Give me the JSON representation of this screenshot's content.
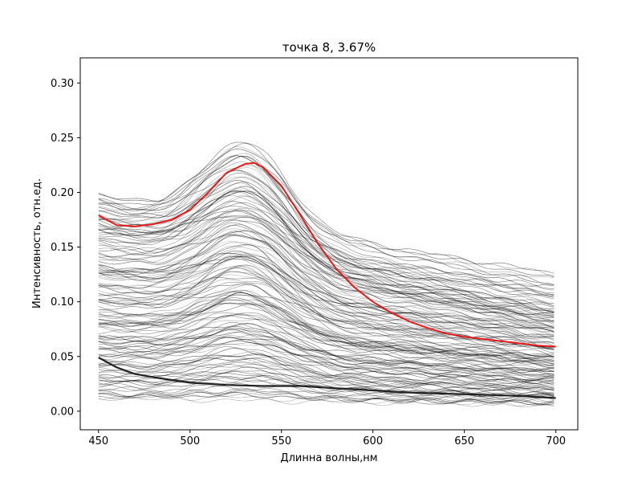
{
  "chart_data": {
    "type": "line",
    "title": "точка 8, 3.67%",
    "xlabel": "Длинна волны,нм",
    "ylabel": "Интенсивность, отн.ед.",
    "xlim": [
      440,
      712
    ],
    "ylim": [
      -0.017,
      0.323
    ],
    "x_ticks": [
      450,
      500,
      550,
      600,
      650,
      700
    ],
    "y_ticks": [
      0.0,
      0.05,
      0.1,
      0.15,
      0.2,
      0.25,
      0.3
    ],
    "x_tick_labels": [
      "450",
      "500",
      "550",
      "600",
      "650",
      "700"
    ],
    "y_tick_labels": [
      "0.00",
      "0.05",
      "0.10",
      "0.15",
      "0.20",
      "0.25",
      "0.30"
    ],
    "grid": false,
    "legend": "none",
    "background_series": {
      "color": "#000000",
      "x_range": [
        450,
        700
      ],
      "count": 160,
      "baseline_range": [
        0.01,
        0.19
      ],
      "peak_x": 530,
      "peak_height_range": [
        0.0,
        0.065
      ]
    },
    "series": [
      {
        "color": "#e41a1c",
        "x": [
          450,
          460,
          470,
          480,
          490,
          500,
          510,
          520,
          530,
          535,
          540,
          550,
          560,
          570,
          580,
          590,
          600,
          610,
          620,
          630,
          640,
          650,
          660,
          670,
          680,
          690,
          700
        ],
        "values": [
          0.179,
          0.17,
          0.169,
          0.171,
          0.175,
          0.184,
          0.2,
          0.218,
          0.226,
          0.227,
          0.223,
          0.206,
          0.18,
          0.153,
          0.13,
          0.113,
          0.1,
          0.09,
          0.082,
          0.076,
          0.071,
          0.068,
          0.066,
          0.064,
          0.062,
          0.06,
          0.059
        ]
      },
      {
        "color": "#222222",
        "x": [
          450,
          460,
          470,
          480,
          500,
          520,
          540,
          560,
          580,
          600,
          620,
          640,
          660,
          680,
          700
        ],
        "values": [
          0.049,
          0.04,
          0.034,
          0.031,
          0.026,
          0.024,
          0.023,
          0.023,
          0.021,
          0.019,
          0.017,
          0.016,
          0.015,
          0.014,
          0.012
        ]
      }
    ]
  }
}
